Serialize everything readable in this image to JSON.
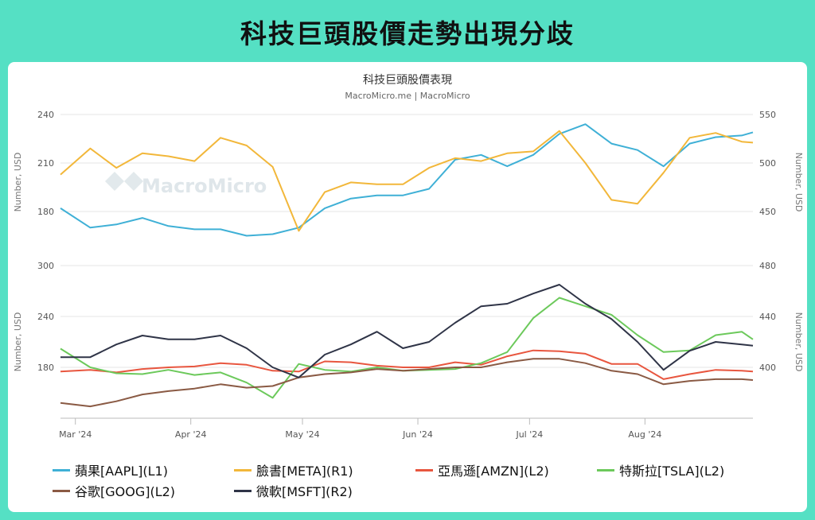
{
  "header": {
    "title": "科技巨頭股價走勢出現分歧"
  },
  "chart_data": {
    "type": "line",
    "title": "科技巨頭股價表現",
    "subtitle": "MacroMicro.me | MacroMicro",
    "watermark": "MacroMicro",
    "x_ticks": [
      "Mar '24",
      "Apr '24",
      "May '24",
      "Jun '24",
      "Jul '24",
      "Aug '24"
    ],
    "panels": [
      {
        "id": "top",
        "left_label": "Number, USD",
        "right_label": "Number, USD",
        "left_ticks": [
          240,
          210,
          180
        ],
        "right_ticks": [
          550,
          500,
          450
        ],
        "left_range": [
          147,
          240
        ],
        "right_range": [
          422,
          550
        ],
        "series": [
          {
            "name": "蘋果[AAPL](L1)",
            "axis": "left",
            "color": "#3fb0d6",
            "x": [
              "2024-02-26",
              "2024-03-05",
              "2024-03-12",
              "2024-03-19",
              "2024-03-26",
              "2024-04-02",
              "2024-04-09",
              "2024-04-16",
              "2024-04-23",
              "2024-04-30",
              "2024-05-07",
              "2024-05-14",
              "2024-05-21",
              "2024-05-28",
              "2024-06-04",
              "2024-06-11",
              "2024-06-18",
              "2024-06-25",
              "2024-07-02",
              "2024-07-09",
              "2024-07-16",
              "2024-07-23",
              "2024-07-30",
              "2024-08-06",
              "2024-08-13",
              "2024-08-20",
              "2024-08-27",
              "2024-08-30"
            ],
            "values": [
              182,
              170,
              172,
              176,
              171,
              169,
              169,
              165,
              166,
              170,
              182,
              188,
              190,
              190,
              194,
              212,
              215,
              208,
              215,
              228,
              234,
              222,
              218,
              208,
              222,
              226,
              227,
              229
            ]
          },
          {
            "name": "臉書[META](R1)",
            "axis": "right",
            "color": "#f2b73a",
            "x": [
              "2024-02-26",
              "2024-03-05",
              "2024-03-12",
              "2024-03-19",
              "2024-03-26",
              "2024-04-02",
              "2024-04-09",
              "2024-04-16",
              "2024-04-23",
              "2024-04-30",
              "2024-05-07",
              "2024-05-14",
              "2024-05-21",
              "2024-05-28",
              "2024-06-04",
              "2024-06-11",
              "2024-06-18",
              "2024-06-25",
              "2024-07-02",
              "2024-07-09",
              "2024-07-16",
              "2024-07-23",
              "2024-07-30",
              "2024-08-06",
              "2024-08-13",
              "2024-08-20",
              "2024-08-27",
              "2024-08-30"
            ],
            "values": [
              488,
              515,
              495,
              510,
              507,
              502,
              526,
              518,
              496,
              430,
              470,
              480,
              478,
              478,
              495,
              505,
              502,
              510,
              512,
              533,
              500,
              462,
              458,
              490,
              526,
              531,
              522,
              521
            ]
          }
        ]
      },
      {
        "id": "bottom",
        "left_label": "Number, USD",
        "right_label": "Number, USD",
        "left_ticks": [
          300,
          240,
          180
        ],
        "right_ticks": [
          480,
          440,
          400
        ],
        "left_range": [
          120,
          300
        ],
        "right_range": [
          360,
          480
        ],
        "series": [
          {
            "name": "亞馬遜[AMZN](L2)",
            "axis": "left",
            "color": "#e8563f",
            "x": [
              "2024-02-26",
              "2024-03-05",
              "2024-03-12",
              "2024-03-19",
              "2024-03-26",
              "2024-04-02",
              "2024-04-09",
              "2024-04-16",
              "2024-04-23",
              "2024-04-30",
              "2024-05-07",
              "2024-05-14",
              "2024-05-21",
              "2024-05-28",
              "2024-06-04",
              "2024-06-11",
              "2024-06-18",
              "2024-06-25",
              "2024-07-02",
              "2024-07-09",
              "2024-07-16",
              "2024-07-23",
              "2024-07-30",
              "2024-08-06",
              "2024-08-13",
              "2024-08-20",
              "2024-08-27",
              "2024-08-30"
            ],
            "values": [
              175,
              177,
              174,
              178,
              180,
              181,
              185,
              183,
              176,
              175,
              187,
              186,
              182,
              180,
              180,
              186,
              183,
              193,
              200,
              199,
              196,
              184,
              184,
              166,
              172,
              177,
              176,
              175
            ]
          },
          {
            "name": "特斯拉[TSLA](L2)",
            "axis": "left",
            "color": "#6cc95b",
            "x": [
              "2024-02-26",
              "2024-03-05",
              "2024-03-12",
              "2024-03-19",
              "2024-03-26",
              "2024-04-02",
              "2024-04-09",
              "2024-04-16",
              "2024-04-23",
              "2024-04-30",
              "2024-05-07",
              "2024-05-14",
              "2024-05-21",
              "2024-05-28",
              "2024-06-04",
              "2024-06-11",
              "2024-06-18",
              "2024-06-25",
              "2024-07-02",
              "2024-07-09",
              "2024-07-16",
              "2024-07-23",
              "2024-07-30",
              "2024-08-06",
              "2024-08-13",
              "2024-08-20",
              "2024-08-27",
              "2024-08-30"
            ],
            "values": [
              202,
              180,
              173,
              172,
              177,
              171,
              174,
              162,
              144,
              184,
              177,
              175,
              180,
              176,
              177,
              178,
              185,
              198,
              238,
              262,
              252,
              242,
              218,
              198,
              200,
              218,
              222,
              213
            ]
          },
          {
            "name": "谷歌[GOOG](L2)",
            "axis": "left",
            "color": "#8a5a44",
            "x": [
              "2024-02-26",
              "2024-03-05",
              "2024-03-12",
              "2024-03-19",
              "2024-03-26",
              "2024-04-02",
              "2024-04-09",
              "2024-04-16",
              "2024-04-23",
              "2024-04-30",
              "2024-05-07",
              "2024-05-14",
              "2024-05-21",
              "2024-05-28",
              "2024-06-04",
              "2024-06-11",
              "2024-06-18",
              "2024-06-25",
              "2024-07-02",
              "2024-07-09",
              "2024-07-16",
              "2024-07-23",
              "2024-07-30",
              "2024-08-06",
              "2024-08-13",
              "2024-08-20",
              "2024-08-27",
              "2024-08-30"
            ],
            "values": [
              138,
              134,
              140,
              148,
              152,
              155,
              160,
              156,
              158,
              168,
              172,
              174,
              178,
              176,
              178,
              180,
              180,
              186,
              190,
              190,
              185,
              176,
              172,
              160,
              164,
              166,
              166,
              165
            ]
          },
          {
            "name": "微軟[MSFT](R2)",
            "axis": "right",
            "color": "#2f3447",
            "x": [
              "2024-02-26",
              "2024-03-05",
              "2024-03-12",
              "2024-03-19",
              "2024-03-26",
              "2024-04-02",
              "2024-04-09",
              "2024-04-16",
              "2024-04-23",
              "2024-04-30",
              "2024-05-07",
              "2024-05-14",
              "2024-05-21",
              "2024-05-28",
              "2024-06-04",
              "2024-06-11",
              "2024-06-18",
              "2024-06-25",
              "2024-07-02",
              "2024-07-09",
              "2024-07-16",
              "2024-07-23",
              "2024-07-30",
              "2024-08-06",
              "2024-08-13",
              "2024-08-20",
              "2024-08-27",
              "2024-08-30"
            ],
            "values": [
              408,
              408,
              418,
              425,
              422,
              422,
              425,
              415,
              400,
              392,
              410,
              418,
              428,
              415,
              420,
              435,
              448,
              450,
              458,
              465,
              450,
              438,
              420,
              398,
              413,
              420,
              418,
              417
            ]
          }
        ]
      }
    ],
    "legend_position": "bottom",
    "grid": true
  }
}
